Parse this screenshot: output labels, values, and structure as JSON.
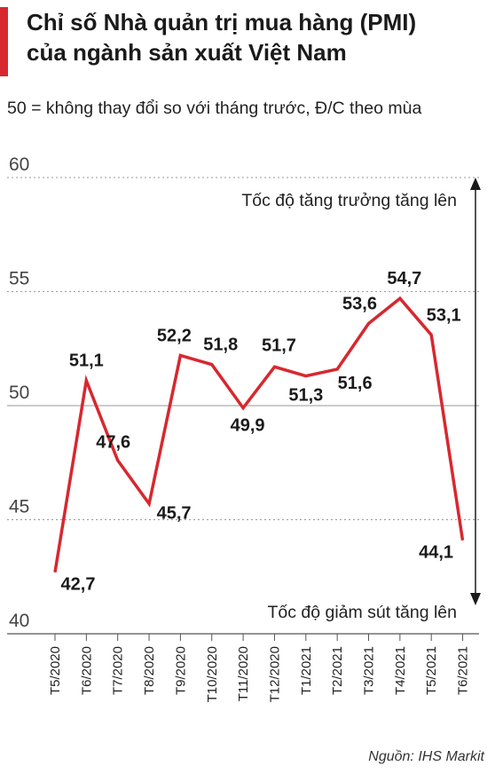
{
  "title_line1": "Chỉ số Nhà quản trị mua hàng (PMI)",
  "title_line2": "của ngành sản xuất Việt Nam",
  "subtitle": "50 = không thay đổi so với tháng trước, Đ/C theo mùa",
  "source": "Nguồn: IHS Markit",
  "colors": {
    "accent": "#d7282f",
    "line": "#d7282f",
    "grid": "#9a9a9a"
  },
  "chart_data": {
    "type": "line",
    "categories": [
      "T5/2020",
      "T6/2020",
      "T7/2020",
      "T8/2020",
      "T9/2020",
      "T10/2020",
      "T11/2020",
      "T12/2020",
      "T1/2021",
      "T2/2021",
      "T3/2021",
      "T4/2021",
      "T5/2021",
      "T6/2021"
    ],
    "values": [
      42.7,
      51.1,
      47.6,
      45.7,
      52.2,
      51.8,
      49.9,
      51.7,
      51.3,
      51.6,
      53.6,
      54.7,
      53.1,
      44.1
    ],
    "value_labels": [
      "42,7",
      "51,1",
      "47,6",
      "45,7",
      "52,2",
      "51,8",
      "49,9",
      "51,7",
      "51,3",
      "51,6",
      "53,6",
      "54,7",
      "53,1",
      "44,1"
    ],
    "yticks": [
      40,
      45,
      50,
      55,
      60
    ],
    "ylim": [
      40,
      60
    ],
    "grid": "dashed",
    "annotations": {
      "up": "Tốc độ tăng trưởng tăng lên",
      "down": "Tốc độ giảm sút tăng lên"
    }
  }
}
